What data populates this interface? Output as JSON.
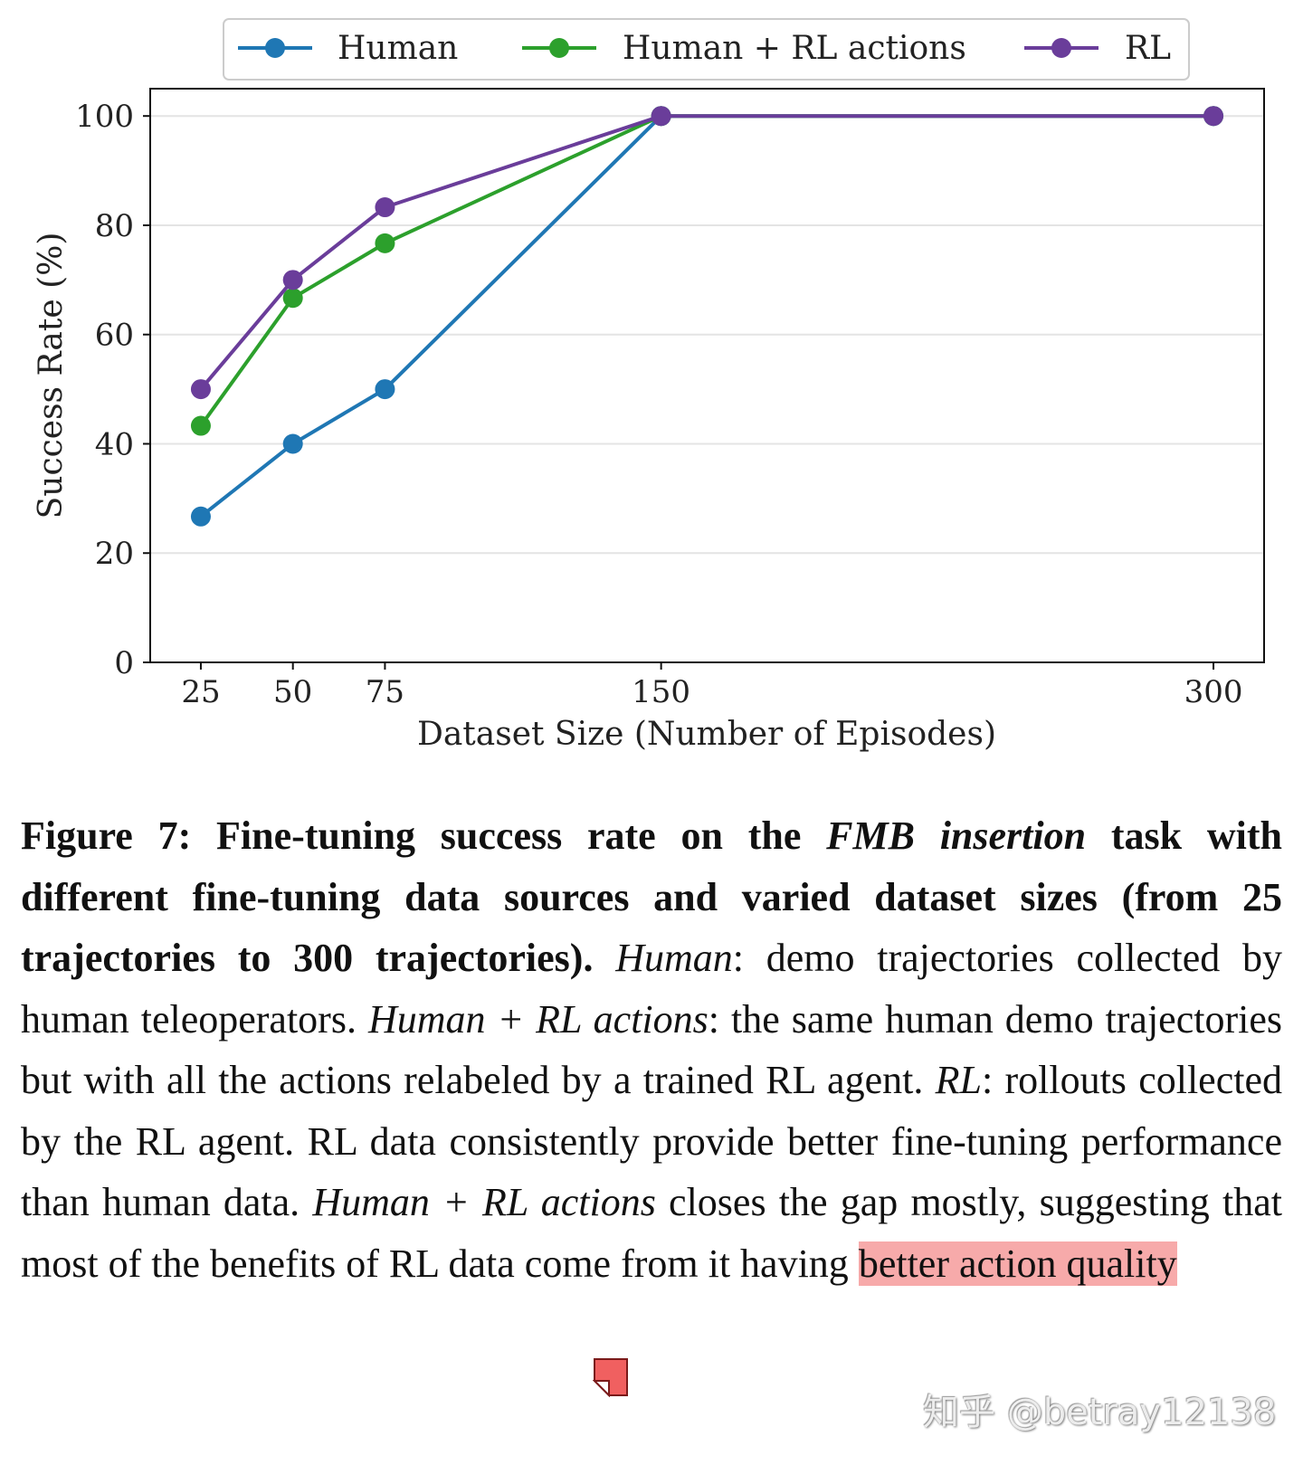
{
  "chart_data": {
    "type": "line",
    "title": "",
    "xlabel": "Dataset Size (Number of Episodes)",
    "ylabel": "Success Rate (%)",
    "x": [
      25,
      50,
      75,
      150,
      300
    ],
    "xticks": [
      "25",
      "50",
      "75",
      "150",
      "300"
    ],
    "yticks": [
      "0",
      "20",
      "40",
      "60",
      "80",
      "100"
    ],
    "xlim": [
      11.25,
      313.75
    ],
    "ylim": [
      0,
      105
    ],
    "grid": "horizontal",
    "legend_placement": "top, outside",
    "series": [
      {
        "name": "Human",
        "color": "#1f77b4",
        "values": [
          26.7,
          40,
          50,
          100,
          100
        ]
      },
      {
        "name": "Human + RL actions",
        "color": "#2ca02c",
        "values": [
          43.3,
          66.7,
          76.7,
          100,
          100
        ]
      },
      {
        "name": "RL",
        "color": "#6a3d9a",
        "values": [
          50,
          70,
          83.3,
          100,
          100
        ]
      }
    ]
  },
  "caption": {
    "label": "Figure 7:",
    "bold_a": " Fine-tuning success rate on the ",
    "bold_italic": "FMB insertion",
    "bold_b": " task with different fine-tuning data sources and varied dataset sizes (from 25 trajectories to 300 trajectories).",
    "i1": "Human",
    "t1": ": demo trajectories collected by human teleoperators. ",
    "i2": "Human + RL actions",
    "t2": ": the same human demo trajectories but with all the actions relabeled by a trained RL agent. ",
    "i3": "RL",
    "t3": ": rollouts collected by the RL agent. RL data consistently provide better fine-tuning performance than human data. ",
    "i4": "Human + RL actions",
    "t4": " closes the gap mostly, suggesting that most of the benefits of RL data come from it having ",
    "highlight": "better action quality"
  },
  "watermark": "知乎 @betray12138",
  "colors": {
    "highlight": "#f7aaaa",
    "note_icon": "#f06060"
  }
}
